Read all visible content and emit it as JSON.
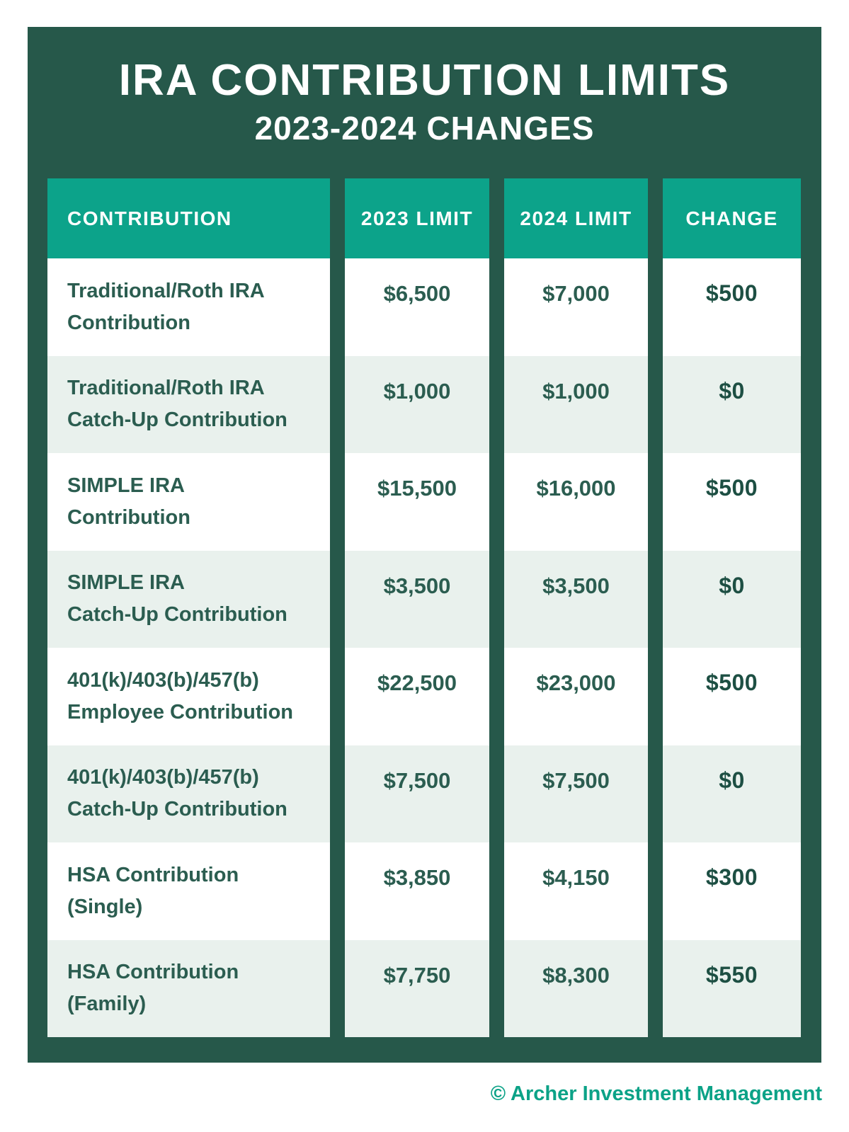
{
  "poster": {
    "title": "IRA CONTRIBUTION LIMITS",
    "subtitle": "2023-2024 CHANGES",
    "footer": "© Archer Investment Management",
    "colors": {
      "page_background": "#ffffff",
      "poster_background": "#26584A",
      "header_teal": "#0CA38A",
      "row_white": "#ffffff",
      "row_light_green": "#E9F1ED",
      "body_text_green": "#2B5D50",
      "change_text_green": "#1D4F43",
      "footer_teal": "#0BA287",
      "title_white": "#ffffff"
    }
  },
  "table": {
    "headers": [
      "CONTRIBUTION",
      "2023 LIMIT",
      "2024 LIMIT",
      "CHANGE"
    ],
    "rows": [
      {
        "label_line1": "Traditional/Roth IRA",
        "label_line2": "Contribution",
        "limit_2023": "$6,500",
        "limit_2024": "$7,000",
        "change": "$500"
      },
      {
        "label_line1": "Traditional/Roth IRA",
        "label_line2": "Catch-Up Contribution",
        "limit_2023": "$1,000",
        "limit_2024": "$1,000",
        "change": "$0"
      },
      {
        "label_line1": "SIMPLE IRA",
        "label_line2": "Contribution",
        "limit_2023": "$15,500",
        "limit_2024": "$16,000",
        "change": "$500"
      },
      {
        "label_line1": "SIMPLE IRA",
        "label_line2": "Catch-Up Contribution",
        "limit_2023": "$3,500",
        "limit_2024": "$3,500",
        "change": "$0"
      },
      {
        "label_line1": "401(k)/403(b)/457(b)",
        "label_line2": "Employee Contribution",
        "limit_2023": "$22,500",
        "limit_2024": "$23,000",
        "change": "$500"
      },
      {
        "label_line1": "401(k)/403(b)/457(b)",
        "label_line2": "Catch-Up Contribution",
        "limit_2023": "$7,500",
        "limit_2024": "$7,500",
        "change": "$0"
      },
      {
        "label_line1": "HSA Contribution",
        "label_line2": "(Single)",
        "limit_2023": "$3,850",
        "limit_2024": "$4,150",
        "change": "$300"
      },
      {
        "label_line1": "HSA Contribution",
        "label_line2": "(Family)",
        "limit_2023": "$7,750",
        "limit_2024": "$8,300",
        "change": "$550"
      }
    ]
  }
}
